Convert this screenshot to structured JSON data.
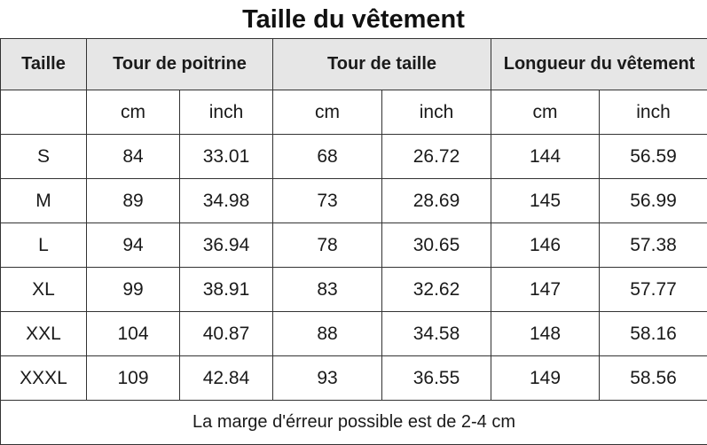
{
  "title": "Taille du vêtement",
  "headers": [
    "Taille",
    "Tour de poitrine",
    "Tour de taille",
    "Longueur du vêtement"
  ],
  "units": [
    "",
    "cm",
    "inch",
    "cm",
    "inch",
    "cm",
    "inch"
  ],
  "rows": [
    [
      "S",
      "84",
      "33.01",
      "68",
      "26.72",
      "144",
      "56.59"
    ],
    [
      "M",
      "89",
      "34.98",
      "73",
      "28.69",
      "145",
      "56.99"
    ],
    [
      "L",
      "94",
      "36.94",
      "78",
      "30.65",
      "146",
      "57.38"
    ],
    [
      "XL",
      "99",
      "38.91",
      "83",
      "32.62",
      "147",
      "57.77"
    ],
    [
      "XXL",
      "104",
      "40.87",
      "88",
      "34.58",
      "148",
      "58.16"
    ],
    [
      "XXXL",
      "109",
      "42.84",
      "93",
      "36.55",
      "149",
      "58.56"
    ]
  ],
  "note": "La marge d'érreur possible est de 2-4 cm"
}
